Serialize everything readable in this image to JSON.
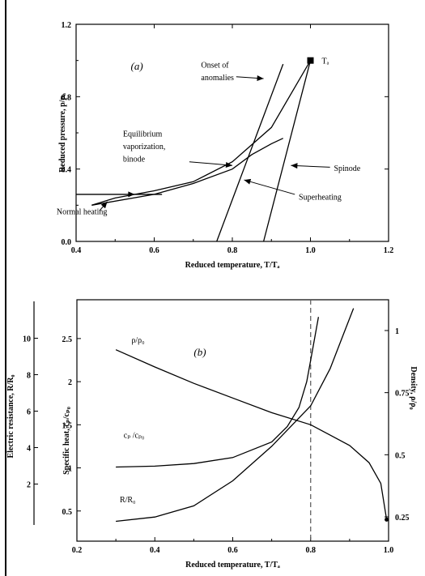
{
  "chart_data": [
    {
      "type": "line",
      "panel_label": "(a)",
      "xlabel": "Reduced temperature, T/Tₐ",
      "ylabel": "Reduced pressure, p/pₐ",
      "xlim": [
        0.4,
        1.2
      ],
      "ylim": [
        0.0,
        1.2
      ],
      "x_ticks": [
        0.4,
        0.6,
        0.8,
        1.0,
        1.2
      ],
      "x_tick_labels": [
        "0.4",
        "0.6",
        "0.8",
        "1.0",
        "1.2"
      ],
      "y_ticks": [
        0.0,
        0.4,
        0.8,
        1.2
      ],
      "y_tick_labels": [
        "0.0",
        "0.4",
        "0.8",
        "1.2"
      ],
      "grid": false,
      "series": [
        {
          "x": [
            0.44,
            0.5,
            0.6,
            0.7,
            0.8,
            0.9,
            1.0
          ],
          "y": [
            0.2,
            0.24,
            0.28,
            0.33,
            0.44,
            0.63,
            1.0
          ]
        },
        {
          "x": [
            0.44,
            0.6,
            0.7,
            0.8,
            0.85,
            0.9,
            0.93
          ],
          "y": [
            0.2,
            0.26,
            0.32,
            0.4,
            0.48,
            0.54,
            0.57
          ]
        },
        {
          "x": [
            0.76,
            0.93
          ],
          "y": [
            0.0,
            0.98
          ]
        },
        {
          "x": [
            0.88,
            1.0
          ],
          "y": [
            0.0,
            1.0
          ]
        }
      ],
      "heating_path": {
        "x": [
          0.32,
          0.62
        ],
        "y": [
          0.26,
          0.26
        ]
      },
      "critical_point": {
        "x": 1.0,
        "y": 1.0,
        "label": "Tₐ"
      },
      "annotations": [
        {
          "text": "(a)",
          "x": 0.54,
          "y": 0.95
        },
        {
          "text": "Onset of",
          "x": 0.72,
          "y": 0.96
        },
        {
          "text": "anomalies",
          "x": 0.72,
          "y": 0.89
        },
        {
          "text": "Equilibrium",
          "x": 0.52,
          "y": 0.58
        },
        {
          "text": "vaporization,",
          "x": 0.52,
          "y": 0.51
        },
        {
          "text": "binode",
          "x": 0.52,
          "y": 0.44
        },
        {
          "text": "Spinode",
          "x": 1.06,
          "y": 0.39
        },
        {
          "text": "Superheating",
          "x": 0.97,
          "y": 0.23
        },
        {
          "text": "Normal heating",
          "x": 0.35,
          "y": 0.15
        }
      ]
    },
    {
      "type": "line",
      "panel_label": "(b)",
      "xlabel": "Reduced temperature, T/Tₐ",
      "ylabel": "Specific heat, cₚ/cₚ₀",
      "ylabel_left_outer": "Electric resistance, R/R₀",
      "ylabel_right": "Density, ρ/ρ₀",
      "xlim": [
        0.2,
        1.0
      ],
      "ylim": [
        0.15,
        2.95
      ],
      "x_ticks": [
        0.2,
        0.4,
        0.6,
        0.8,
        1.0
      ],
      "x_tick_labels": [
        "0.2",
        "0.4",
        "0.6",
        "0.8",
        "1.0"
      ],
      "y_ticks": [
        0.5,
        1.0,
        1.5,
        2.0,
        2.5
      ],
      "y_tick_labels": [
        "0.5",
        "1",
        "1.5",
        "2",
        "2.5"
      ],
      "resistance_ticks": [
        2,
        4,
        6,
        8,
        10
      ],
      "resistance_tick_labels": [
        "2",
        "4",
        "6",
        "8",
        "10"
      ],
      "density_ticks": [
        0.25,
        0.5,
        0.75,
        1.0
      ],
      "density_tick_labels": [
        "0.25",
        "0.5",
        "0.75",
        "1"
      ],
      "vertical_dashed_line_x": 0.8,
      "grid": false,
      "series": [
        {
          "name": "ρ/ρ₀",
          "x": [
            0.3,
            0.4,
            0.5,
            0.6,
            0.7,
            0.8,
            0.85,
            0.9,
            0.95,
            0.98,
            0.995
          ],
          "y": [
            2.37,
            2.17,
            1.98,
            1.81,
            1.64,
            1.5,
            1.38,
            1.26,
            1.06,
            0.82,
            0.4
          ]
        },
        {
          "name": "cₚ/cₚ₀",
          "x": [
            0.3,
            0.4,
            0.5,
            0.6,
            0.7,
            0.74,
            0.77,
            0.79,
            0.8,
            0.81,
            0.82
          ],
          "y": [
            1.01,
            1.02,
            1.05,
            1.12,
            1.3,
            1.48,
            1.7,
            2.0,
            2.25,
            2.5,
            2.75
          ]
        },
        {
          "name": "R/R₀",
          "x": [
            0.3,
            0.4,
            0.5,
            0.6,
            0.7,
            0.8,
            0.85,
            0.88,
            0.91
          ],
          "y": [
            0.38,
            0.43,
            0.56,
            0.85,
            1.25,
            1.72,
            2.15,
            2.5,
            2.85
          ]
        }
      ],
      "annotations": [
        {
          "text": "(b)",
          "x": 0.5,
          "y": 2.3
        },
        {
          "text": "ρ/ρ₀",
          "x": 0.34,
          "y": 2.45
        },
        {
          "text": "cₚ /cₚ₀",
          "x": 0.32,
          "y": 1.35
        },
        {
          "text": "R/R₀",
          "x": 0.31,
          "y": 0.6
        }
      ]
    }
  ]
}
